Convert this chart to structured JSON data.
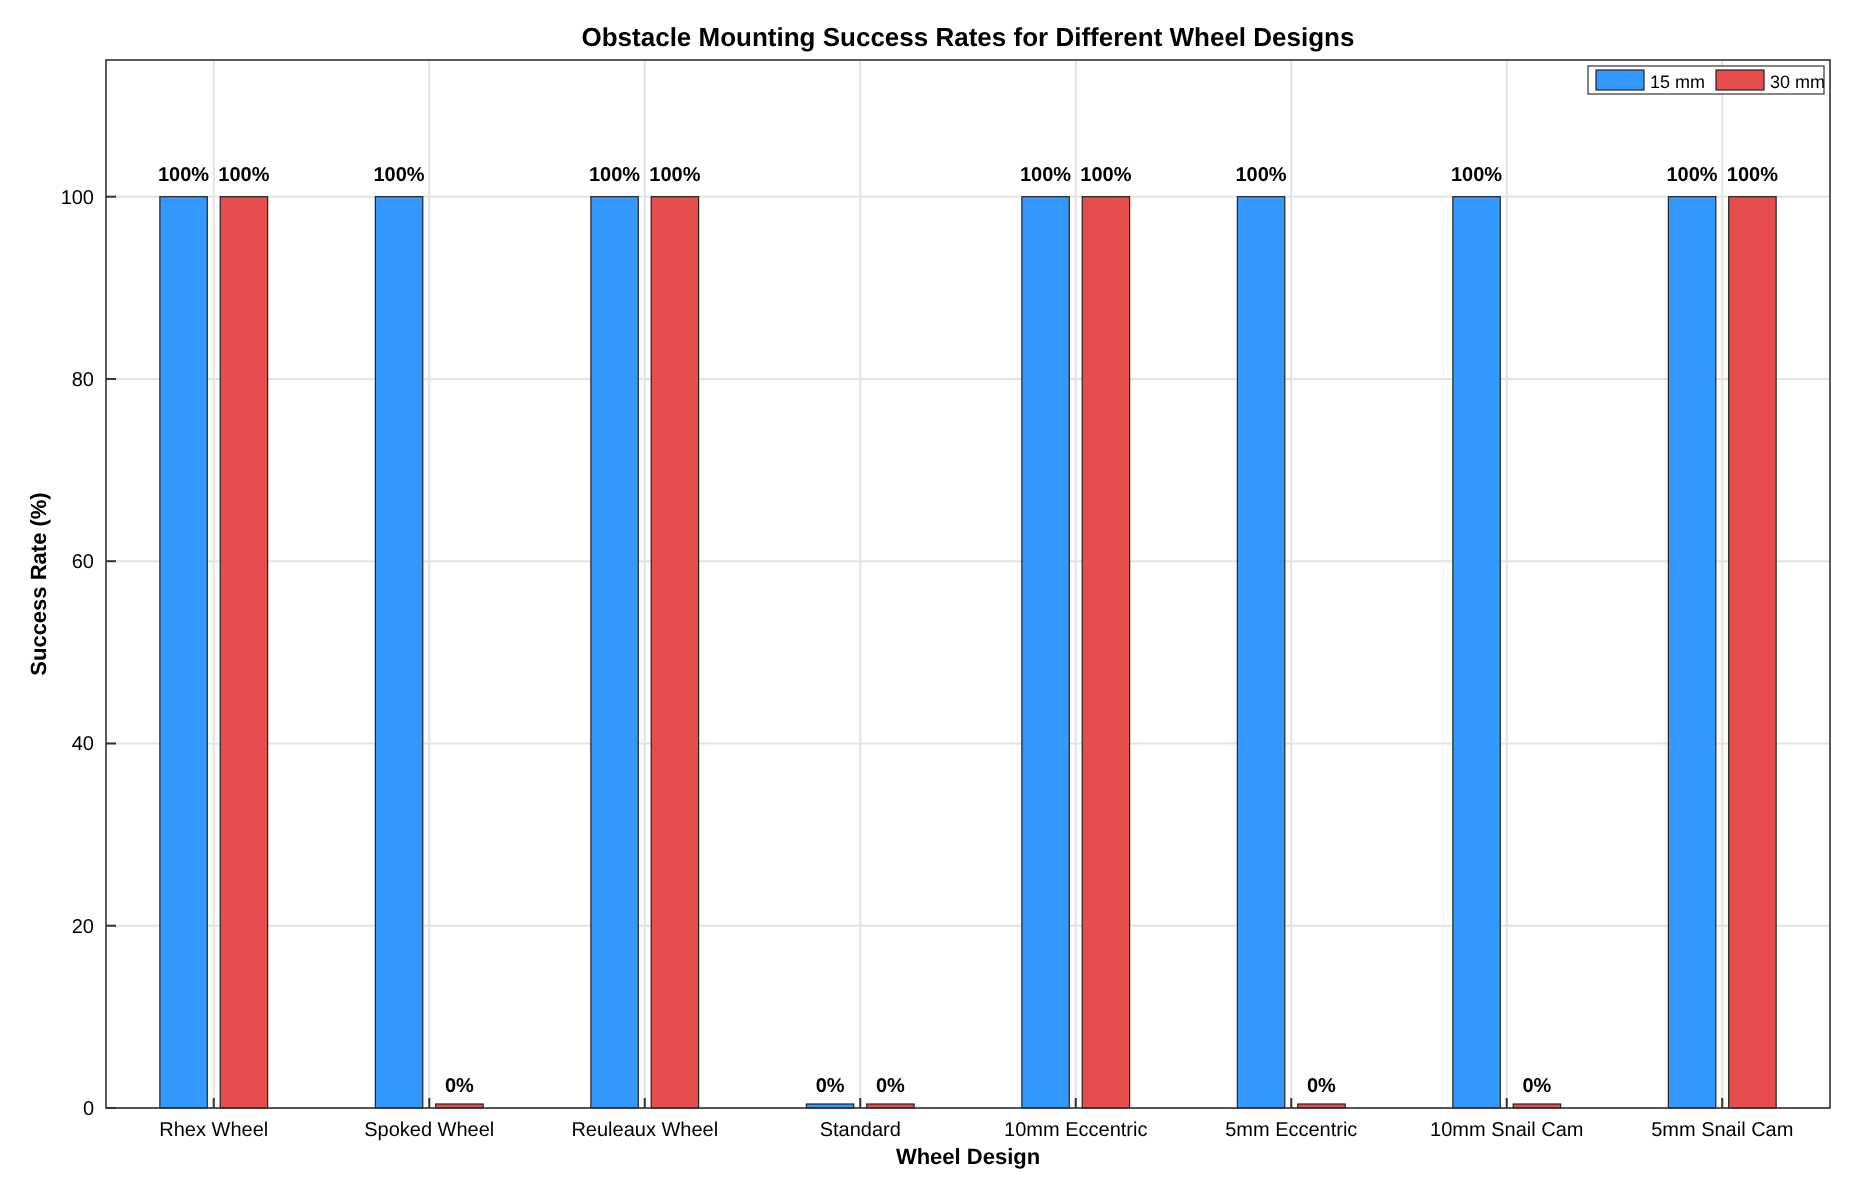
{
  "chart_data": {
    "type": "bar",
    "title": "Obstacle Mounting Success Rates for Different Wheel Designs",
    "xlabel": "Wheel Design",
    "ylabel": "Success Rate (%)",
    "categories": [
      "Rhex Wheel",
      "Spoked Wheel",
      "Reuleaux Wheel",
      "Standard",
      "10mm Eccentric",
      "5mm Eccentric",
      "10mm Snail Cam",
      "5mm Snail Cam"
    ],
    "series": [
      {
        "name": "15 mm",
        "color": "#3399ff",
        "values": [
          100,
          100,
          100,
          0,
          100,
          100,
          100,
          100
        ],
        "value_labels": [
          "100%",
          "100%",
          "100%",
          "0%",
          "100%",
          "100%",
          "100%",
          "100%"
        ]
      },
      {
        "name": "30 mm",
        "color": "#e64d4d",
        "values": [
          100,
          0,
          100,
          0,
          100,
          0,
          0,
          100
        ],
        "value_labels": [
          "100%",
          "0%",
          "100%",
          "0%",
          "100%",
          "0%",
          "0%",
          "100%"
        ]
      }
    ],
    "ylim": [
      0,
      115
    ],
    "yticks": [
      0,
      20,
      40,
      60,
      80,
      100
    ],
    "grid": true,
    "legend": "top right"
  }
}
